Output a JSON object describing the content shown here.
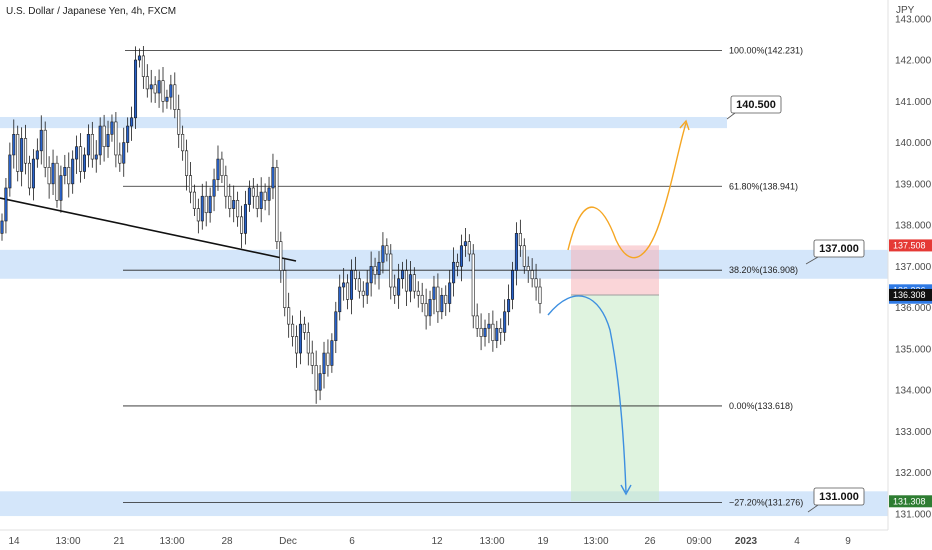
{
  "title": "U.S. Dollar / Japanese Yen, 4h, FXCM",
  "currency": "JPY",
  "chart_data": {
    "type": "candlestick",
    "symbol": "USDJPY",
    "timeframe": "4h",
    "ylim": [
      130.7,
      143.2
    ],
    "y_ticks": [
      "143.000",
      "142.000",
      "141.000",
      "140.000",
      "139.000",
      "138.000",
      "137.000",
      "136.000",
      "135.000",
      "134.000",
      "133.000",
      "132.000",
      "131.000"
    ],
    "x_ticks": [
      "14",
      "13:00",
      "21",
      "13:00",
      "28",
      "Dec",
      "6",
      "12",
      "13:00",
      "19",
      "13:00",
      "26",
      "09:00",
      "2023",
      "4",
      "9"
    ],
    "fib_levels": [
      {
        "label": "100.00%(142.231)",
        "price": 142.231
      },
      {
        "label": "61.80%(138.941)",
        "price": 138.941
      },
      {
        "label": "38.20%(136.908)",
        "price": 136.908
      },
      {
        "label": "0.00%(133.618)",
        "price": 133.618
      },
      {
        "label": "−27.20%(131.276)",
        "price": 131.276
      }
    ],
    "zones": [
      {
        "name": "140.500",
        "low": 140.35,
        "high": 140.62
      },
      {
        "name": "137.000",
        "low": 136.7,
        "high": 137.4
      },
      {
        "name": "131.000",
        "low": 130.95,
        "high": 131.55
      }
    ],
    "callouts": [
      "140.500",
      "137.000",
      "131.000"
    ],
    "price_tags": [
      {
        "text": "137.508",
        "price": 137.508,
        "color": "#e53935"
      },
      {
        "text": "136.336",
        "price": 136.42,
        "color": "#2f7ae5"
      },
      {
        "text": "02:44:25",
        "price": 136.24,
        "color": "#2f7ae5"
      },
      {
        "text": "136.308",
        "price": 136.308,
        "color": "#111111"
      },
      {
        "text": "131.308",
        "price": 131.308,
        "color": "#2e7d32"
      }
    ],
    "position": {
      "entry": 136.308,
      "stop": 137.508,
      "target": 131.308,
      "direction": "short"
    },
    "closes": [
      138.1,
      138.9,
      139.7,
      140.2,
      139.3,
      140.1,
      139.5,
      138.9,
      139.6,
      139.8,
      140.3,
      139.4,
      139.0,
      139.5,
      138.6,
      139.2,
      139.4,
      139.0,
      139.6,
      139.9,
      139.3,
      139.7,
      140.2,
      139.6,
      139.7,
      140.4,
      139.9,
      140.2,
      140.5,
      139.7,
      139.5,
      140.0,
      140.4,
      140.6,
      142.0,
      142.1,
      141.6,
      141.3,
      141.4,
      141.2,
      141.5,
      141.0,
      141.1,
      141.4,
      140.8,
      140.2,
      139.8,
      139.2,
      138.8,
      138.4,
      138.1,
      138.7,
      138.3,
      138.7,
      139.1,
      139.6,
      139.2,
      138.7,
      138.4,
      138.6,
      138.2,
      137.8,
      138.5,
      138.9,
      138.7,
      138.4,
      138.8,
      138.6,
      138.9,
      139.4,
      137.6,
      136.9,
      136.0,
      135.6,
      135.3,
      134.9,
      135.6,
      135.4,
      134.9,
      134.6,
      134.0,
      134.4,
      134.9,
      134.6,
      135.2,
      135.9,
      136.5,
      136.6,
      136.2,
      136.9,
      136.7,
      136.4,
      136.3,
      136.6,
      137.0,
      136.8,
      137.1,
      137.5,
      137.3,
      136.5,
      136.3,
      136.7,
      136.9,
      136.4,
      136.8,
      136.4,
      136.3,
      136.1,
      135.8,
      136.2,
      136.5,
      135.9,
      136.3,
      136.1,
      136.6,
      137.1,
      137.0,
      137.5,
      137.6,
      137.3,
      135.8,
      135.5,
      135.3,
      135.5,
      135.6,
      135.2,
      135.5,
      135.4,
      135.9,
      136.2,
      136.9,
      137.8,
      137.5,
      137.0,
      136.9,
      136.7,
      136.5,
      136.1
    ]
  }
}
